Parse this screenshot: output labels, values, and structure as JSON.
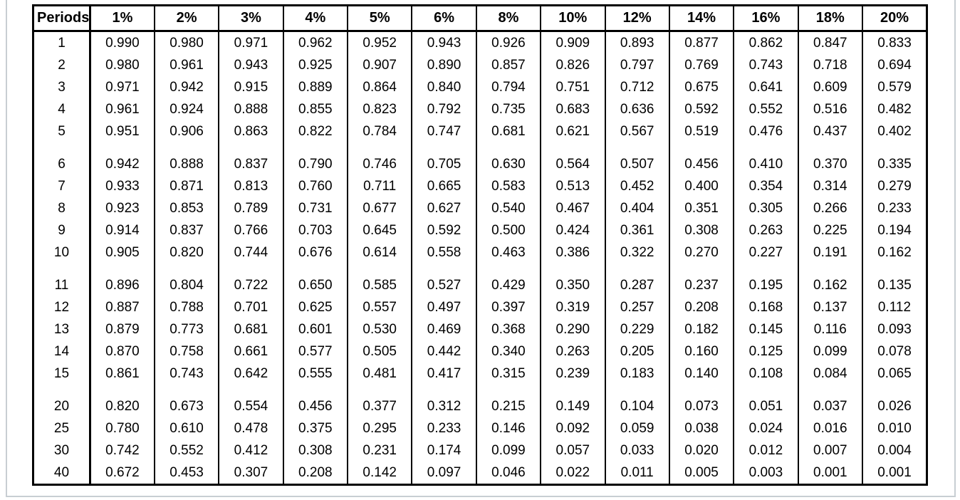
{
  "page": {
    "background": "#ffffff",
    "frame_border_color": "#c8ced3",
    "table_border_color": "#000000",
    "text_color": "#000000"
  },
  "chart_data": {
    "type": "table",
    "columns": [
      "Periods",
      "1%",
      "2%",
      "3%",
      "4%",
      "5%",
      "6%",
      "8%",
      "10%",
      "12%",
      "14%",
      "16%",
      "18%",
      "20%"
    ],
    "row_groups": [
      {
        "rows": [
          [
            "1",
            "0.990",
            "0.980",
            "0.971",
            "0.962",
            "0.952",
            "0.943",
            "0.926",
            "0.909",
            "0.893",
            "0.877",
            "0.862",
            "0.847",
            "0.833"
          ],
          [
            "2",
            "0.980",
            "0.961",
            "0.943",
            "0.925",
            "0.907",
            "0.890",
            "0.857",
            "0.826",
            "0.797",
            "0.769",
            "0.743",
            "0.718",
            "0.694"
          ],
          [
            "3",
            "0.971",
            "0.942",
            "0.915",
            "0.889",
            "0.864",
            "0.840",
            "0.794",
            "0.751",
            "0.712",
            "0.675",
            "0.641",
            "0.609",
            "0.579"
          ],
          [
            "4",
            "0.961",
            "0.924",
            "0.888",
            "0.855",
            "0.823",
            "0.792",
            "0.735",
            "0.683",
            "0.636",
            "0.592",
            "0.552",
            "0.516",
            "0.482"
          ],
          [
            "5",
            "0.951",
            "0.906",
            "0.863",
            "0.822",
            "0.784",
            "0.747",
            "0.681",
            "0.621",
            "0.567",
            "0.519",
            "0.476",
            "0.437",
            "0.402"
          ]
        ]
      },
      {
        "rows": [
          [
            "6",
            "0.942",
            "0.888",
            "0.837",
            "0.790",
            "0.746",
            "0.705",
            "0.630",
            "0.564",
            "0.507",
            "0.456",
            "0.410",
            "0.370",
            "0.335"
          ],
          [
            "7",
            "0.933",
            "0.871",
            "0.813",
            "0.760",
            "0.711",
            "0.665",
            "0.583",
            "0.513",
            "0.452",
            "0.400",
            "0.354",
            "0.314",
            "0.279"
          ],
          [
            "8",
            "0.923",
            "0.853",
            "0.789",
            "0.731",
            "0.677",
            "0.627",
            "0.540",
            "0.467",
            "0.404",
            "0.351",
            "0.305",
            "0.266",
            "0.233"
          ],
          [
            "9",
            "0.914",
            "0.837",
            "0.766",
            "0.703",
            "0.645",
            "0.592",
            "0.500",
            "0.424",
            "0.361",
            "0.308",
            "0.263",
            "0.225",
            "0.194"
          ],
          [
            "10",
            "0.905",
            "0.820",
            "0.744",
            "0.676",
            "0.614",
            "0.558",
            "0.463",
            "0.386",
            "0.322",
            "0.270",
            "0.227",
            "0.191",
            "0.162"
          ]
        ]
      },
      {
        "rows": [
          [
            "11",
            "0.896",
            "0.804",
            "0.722",
            "0.650",
            "0.585",
            "0.527",
            "0.429",
            "0.350",
            "0.287",
            "0.237",
            "0.195",
            "0.162",
            "0.135"
          ],
          [
            "12",
            "0.887",
            "0.788",
            "0.701",
            "0.625",
            "0.557",
            "0.497",
            "0.397",
            "0.319",
            "0.257",
            "0.208",
            "0.168",
            "0.137",
            "0.112"
          ],
          [
            "13",
            "0.879",
            "0.773",
            "0.681",
            "0.601",
            "0.530",
            "0.469",
            "0.368",
            "0.290",
            "0.229",
            "0.182",
            "0.145",
            "0.116",
            "0.093"
          ],
          [
            "14",
            "0.870",
            "0.758",
            "0.661",
            "0.577",
            "0.505",
            "0.442",
            "0.340",
            "0.263",
            "0.205",
            "0.160",
            "0.125",
            "0.099",
            "0.078"
          ],
          [
            "15",
            "0.861",
            "0.743",
            "0.642",
            "0.555",
            "0.481",
            "0.417",
            "0.315",
            "0.239",
            "0.183",
            "0.140",
            "0.108",
            "0.084",
            "0.065"
          ]
        ]
      },
      {
        "rows": [
          [
            "20",
            "0.820",
            "0.673",
            "0.554",
            "0.456",
            "0.377",
            "0.312",
            "0.215",
            "0.149",
            "0.104",
            "0.073",
            "0.051",
            "0.037",
            "0.026"
          ],
          [
            "25",
            "0.780",
            "0.610",
            "0.478",
            "0.375",
            "0.295",
            "0.233",
            "0.146",
            "0.092",
            "0.059",
            "0.038",
            "0.024",
            "0.016",
            "0.010"
          ],
          [
            "30",
            "0.742",
            "0.552",
            "0.412",
            "0.308",
            "0.231",
            "0.174",
            "0.099",
            "0.057",
            "0.033",
            "0.020",
            "0.012",
            "0.007",
            "0.004"
          ],
          [
            "40",
            "0.672",
            "0.453",
            "0.307",
            "0.208",
            "0.142",
            "0.097",
            "0.046",
            "0.022",
            "0.011",
            "0.005",
            "0.003",
            "0.001",
            "0.001"
          ]
        ]
      }
    ]
  }
}
